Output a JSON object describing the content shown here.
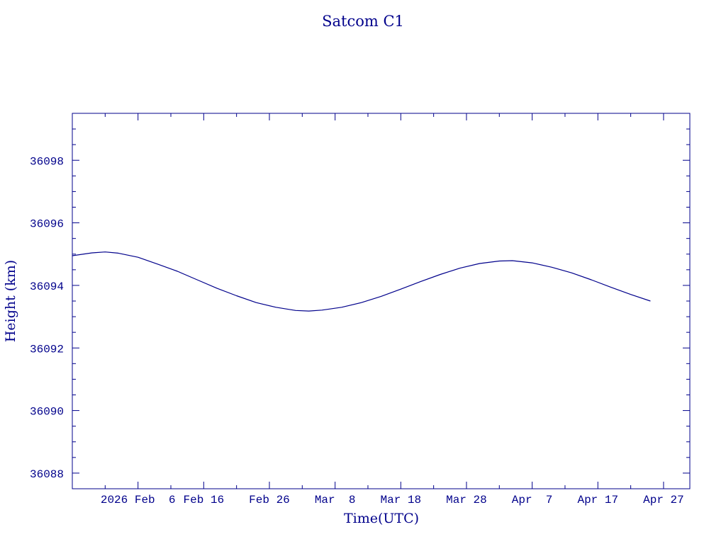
{
  "chart_data": {
    "type": "line",
    "title": "Satcom C1",
    "xlabel": "Time(UTC)",
    "ylabel": "Height (km)",
    "xlim": [
      "2026-01-27",
      "2026-05-01"
    ],
    "ylim": [
      36087.5,
      36099.5
    ],
    "x_ticks": [
      {
        "date": "2026-02-06",
        "label": "2026 Feb  6"
      },
      {
        "date": "2026-02-16",
        "label": "Feb 16"
      },
      {
        "date": "2026-02-26",
        "label": "Feb 26"
      },
      {
        "date": "2026-03-08",
        "label": "Mar  8"
      },
      {
        "date": "2026-03-18",
        "label": "Mar 18"
      },
      {
        "date": "2026-03-28",
        "label": "Mar 28"
      },
      {
        "date": "2026-04-07",
        "label": "Apr  7"
      },
      {
        "date": "2026-04-17",
        "label": "Apr 17"
      },
      {
        "date": "2026-04-27",
        "label": "Apr 27"
      }
    ],
    "y_ticks": [
      36088,
      36090,
      36092,
      36094,
      36096,
      36098
    ],
    "grid": false,
    "series": [
      {
        "color": "#00008b",
        "points": [
          {
            "x": "2026-01-27",
            "y": 36094.95
          },
          {
            "x": "2026-01-30",
            "y": 36095.04
          },
          {
            "x": "2026-02-01",
            "y": 36095.07
          },
          {
            "x": "2026-02-03",
            "y": 36095.03
          },
          {
            "x": "2026-02-06",
            "y": 36094.9
          },
          {
            "x": "2026-02-09",
            "y": 36094.68
          },
          {
            "x": "2026-02-12",
            "y": 36094.45
          },
          {
            "x": "2026-02-15",
            "y": 36094.18
          },
          {
            "x": "2026-02-18",
            "y": 36093.91
          },
          {
            "x": "2026-02-21",
            "y": 36093.67
          },
          {
            "x": "2026-02-24",
            "y": 36093.45
          },
          {
            "x": "2026-02-27",
            "y": 36093.3
          },
          {
            "x": "2026-03-02",
            "y": 36093.2
          },
          {
            "x": "2026-03-04",
            "y": 36093.18
          },
          {
            "x": "2026-03-06",
            "y": 36093.21
          },
          {
            "x": "2026-03-09",
            "y": 36093.3
          },
          {
            "x": "2026-03-12",
            "y": 36093.45
          },
          {
            "x": "2026-03-15",
            "y": 36093.65
          },
          {
            "x": "2026-03-18",
            "y": 36093.88
          },
          {
            "x": "2026-03-21",
            "y": 36094.12
          },
          {
            "x": "2026-03-24",
            "y": 36094.35
          },
          {
            "x": "2026-03-27",
            "y": 36094.55
          },
          {
            "x": "2026-03-30",
            "y": 36094.7
          },
          {
            "x": "2026-04-02",
            "y": 36094.78
          },
          {
            "x": "2026-04-04",
            "y": 36094.79
          },
          {
            "x": "2026-04-07",
            "y": 36094.72
          },
          {
            "x": "2026-04-10",
            "y": 36094.58
          },
          {
            "x": "2026-04-13",
            "y": 36094.4
          },
          {
            "x": "2026-04-16",
            "y": 36094.18
          },
          {
            "x": "2026-04-19",
            "y": 36093.94
          },
          {
            "x": "2026-04-22",
            "y": 36093.71
          },
          {
            "x": "2026-04-25",
            "y": 36093.5
          }
        ]
      }
    ]
  }
}
